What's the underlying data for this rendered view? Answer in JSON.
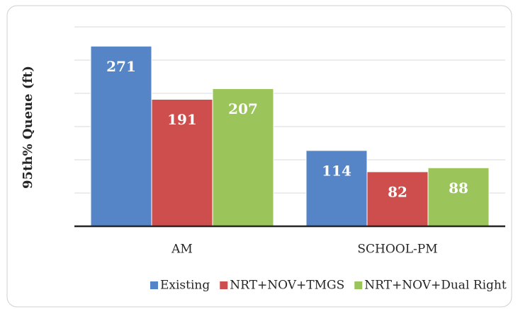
{
  "chart_data": {
    "type": "bar",
    "y_label": "95th% Queue (ft)",
    "categories": [
      "AM",
      "SCHOOL-PM"
    ],
    "series": [
      {
        "name": "Existing",
        "color": "#5585c6",
        "values": [
          271,
          114
        ]
      },
      {
        "name": "NRT+NOV+TMGS",
        "color": "#cd4e4c",
        "values": [
          191,
          82
        ]
      },
      {
        "name": "NRT+NOV+Dual Right",
        "color": "#9bc45a",
        "values": [
          207,
          88
        ]
      }
    ],
    "ylim": [
      0,
      300
    ],
    "yticks": [
      0,
      50,
      100,
      150,
      200,
      250,
      300
    ],
    "grid": true,
    "legend": "bottom"
  }
}
